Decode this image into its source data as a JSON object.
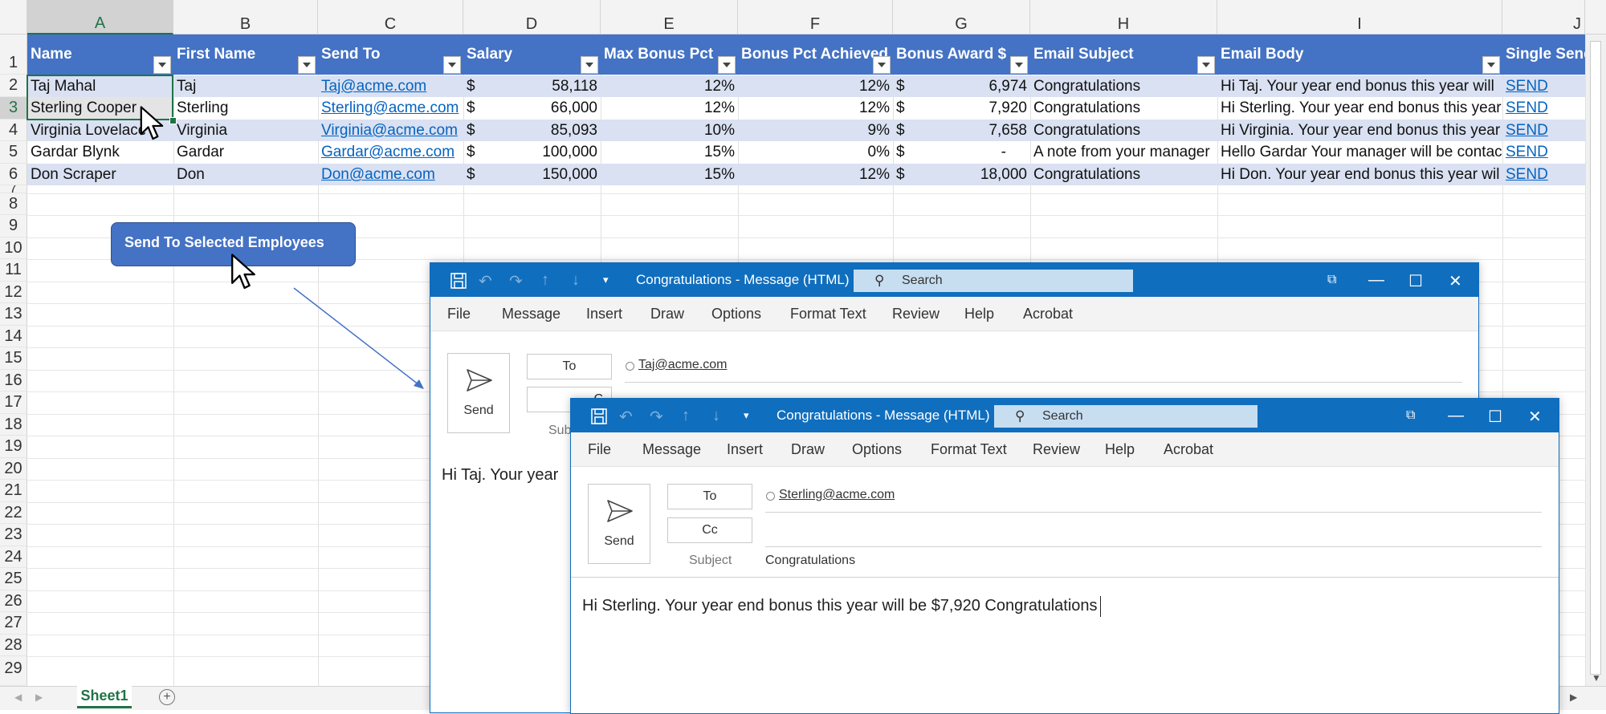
{
  "columns": [
    "A",
    "B",
    "C",
    "D",
    "E",
    "F",
    "G",
    "H",
    "I",
    "J"
  ],
  "rows": [
    "1",
    "2",
    "3",
    "4",
    "5",
    "6",
    "7",
    "8",
    "9",
    "10",
    "11",
    "12",
    "13",
    "14",
    "15",
    "16",
    "17",
    "18",
    "19",
    "20",
    "21",
    "22",
    "23",
    "24",
    "25",
    "26",
    "27",
    "28",
    "29"
  ],
  "table": {
    "headers": [
      "Name",
      "First Name",
      "Send To",
      "Salary",
      "Max Bonus Pct",
      "Bonus Pct Achieved",
      "Bonus Award $",
      "Email Subject",
      "Email Body",
      "Single Send"
    ],
    "rows": [
      {
        "name": "Taj Mahal",
        "first": "Taj",
        "email": "Taj@acme.com",
        "cur": "$",
        "salary": "58,118",
        "max": "12%",
        "ach": "12%",
        "cur2": "$",
        "award": "6,974",
        "subject": "Congratulations",
        "body": "Hi Taj. Your year end bonus this year will",
        "send": "SEND"
      },
      {
        "name": "Sterling Cooper",
        "first": "Sterling",
        "email": "Sterling@acme.com",
        "cur": "$",
        "salary": "66,000",
        "max": "12%",
        "ach": "12%",
        "cur2": "$",
        "award": "7,920",
        "subject": "Congratulations",
        "body": "Hi Sterling. Your year end bonus this year",
        "send": "SEND"
      },
      {
        "name": "Virginia Lovelace",
        "first": "Virginia",
        "email": "Virginia@acme.com",
        "cur": "$",
        "salary": "85,093",
        "max": "10%",
        "ach": "9%",
        "cur2": "$",
        "award": "7,658",
        "subject": "Congratulations",
        "body": "Hi Virginia. Your year end bonus this year",
        "send": "SEND"
      },
      {
        "name": "Gardar Blynk",
        "first": "Gardar",
        "email": "Gardar@acme.com",
        "cur": "$",
        "salary": "100,000",
        "max": "15%",
        "ach": "0%",
        "cur2": "$",
        "award": "-",
        "subject": "A note from your manager",
        "body": "Hello Gardar Your manager will be contac",
        "send": "SEND"
      },
      {
        "name": "Don Scraper",
        "first": "Don",
        "email": "Don@acme.com",
        "cur": "$",
        "salary": "150,000",
        "max": "15%",
        "ach": "12%",
        "cur2": "$",
        "award": "18,000",
        "subject": "Congratulations",
        "body": "Hi Don. Your year end bonus this year wil",
        "send": "SEND"
      }
    ]
  },
  "send_selected_button": "Send To Selected Employees",
  "sheet_tab": "Sheet1",
  "colors": {
    "table_header": "#4472c4",
    "band": "#d9e1f2",
    "excel_green": "#217346",
    "outlook_blue": "#106ebe",
    "shape_blue": "#4472c4"
  },
  "outlook_back": {
    "title": "Congratulations  -  Message (HTML)",
    "search": "Search",
    "ribbon": [
      "File",
      "Message",
      "Insert",
      "Draw",
      "Options",
      "Format Text",
      "Review",
      "Help",
      "Acrobat"
    ],
    "send_label": "Send",
    "to_label": "To",
    "cc_label_partial": "C",
    "subject_label_partial": "Sub",
    "to_value": "Taj@acme.com",
    "body_partial": "Hi Taj. Your year"
  },
  "outlook_front": {
    "title": "Congratulations  -  Message (HTML)",
    "search": "Search",
    "ribbon": [
      "File",
      "Message",
      "Insert",
      "Draw",
      "Options",
      "Format Text",
      "Review",
      "Help",
      "Acrobat"
    ],
    "send_label": "Send",
    "to_label": "To",
    "cc_label": "Cc",
    "subject_label": "Subject",
    "subject_value": "Congratulations",
    "to_value": "Sterling@acme.com",
    "body": "Hi Sterling. Your year end bonus this year will be $7,920 Congratulations"
  }
}
